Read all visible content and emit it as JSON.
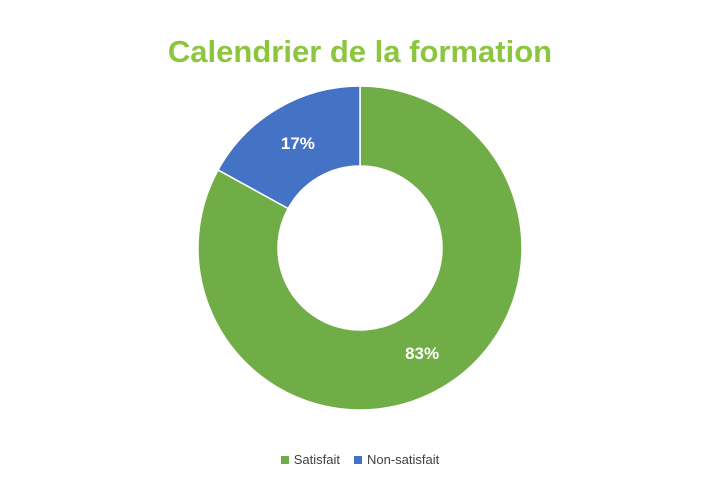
{
  "chart_data": {
    "type": "pie",
    "title": "Calendrier de la formation",
    "categories": [
      "Satisfait",
      "Non-satisfait"
    ],
    "values": [
      83,
      17
    ],
    "data_labels": [
      "83%",
      "17%"
    ],
    "colors": [
      "#70AD47",
      "#4472C4"
    ],
    "title_color": "#8CC63F",
    "donut": true,
    "legend": "bottom"
  }
}
